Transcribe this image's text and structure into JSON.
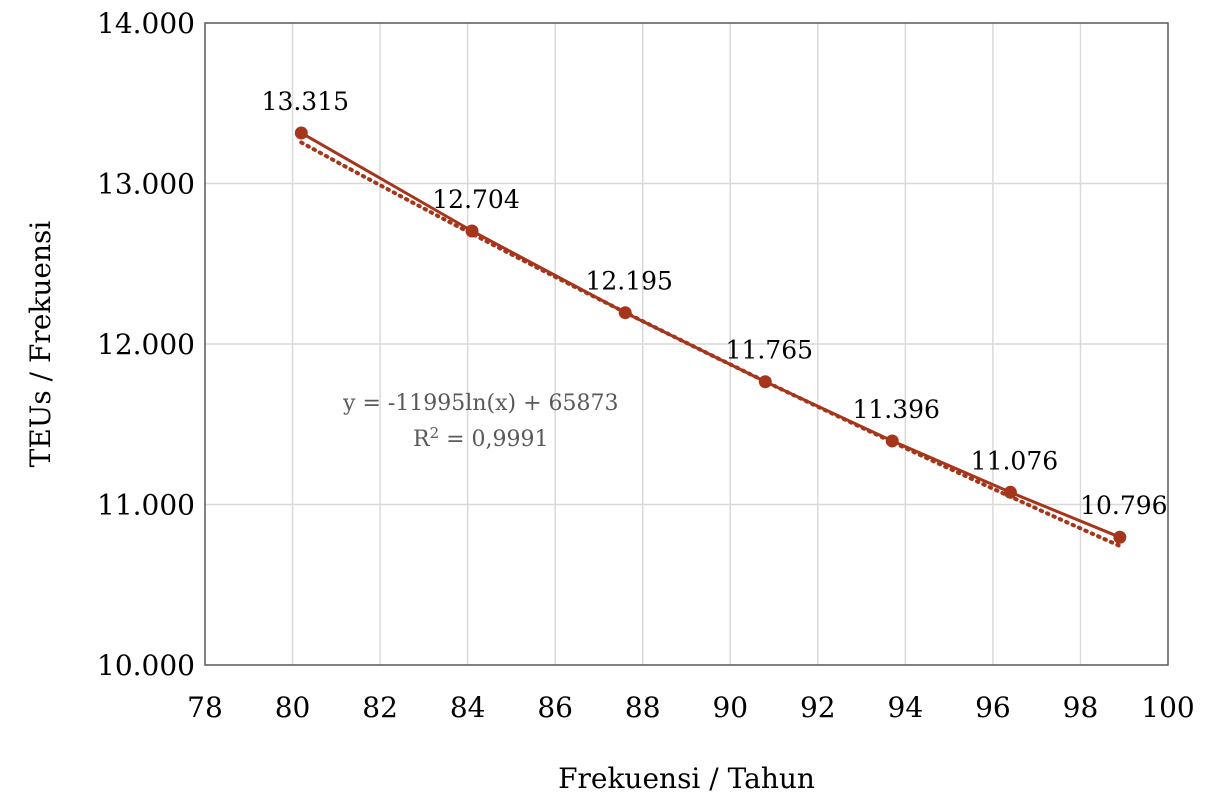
{
  "chart_data": {
    "type": "scatter",
    "xlabel": "Frekuensi / Tahun",
    "ylabel": "TEUs / Frekuensi",
    "xlim": [
      78,
      100
    ],
    "ylim": [
      10000,
      14000
    ],
    "x_ticks": [
      78,
      80,
      82,
      84,
      86,
      88,
      90,
      92,
      94,
      96,
      98,
      100
    ],
    "y_ticks": [
      10000,
      11000,
      12000,
      13000,
      14000
    ],
    "x_tick_labels": [
      "78",
      "80",
      "82",
      "84",
      "86",
      "88",
      "90",
      "92",
      "94",
      "96",
      "98",
      "100"
    ],
    "y_tick_labels": [
      "10.000",
      "11.000",
      "12.000",
      "13.000",
      "14.000"
    ],
    "grid": true,
    "series": [
      {
        "x": [
          80.2,
          84.1,
          87.6,
          90.8,
          93.7,
          96.4,
          98.9
        ],
        "y": [
          13315,
          12704,
          12195,
          11765,
          11396,
          11076,
          10796
        ],
        "labels": [
          "13.315",
          "12.704",
          "12.195",
          "11.765",
          "11.396",
          "11.076",
          "10.796"
        ],
        "color": "#A5361C"
      }
    ],
    "trendline": {
      "type": "logarithmic",
      "a": -11995,
      "b": 65873,
      "equation": "y = -11995ln(x) + 65873",
      "r2_prefix": "R",
      "r2_exp": "2",
      "r2_value": " = 0,9991",
      "color": "#A5361C",
      "style": "dotted"
    }
  }
}
